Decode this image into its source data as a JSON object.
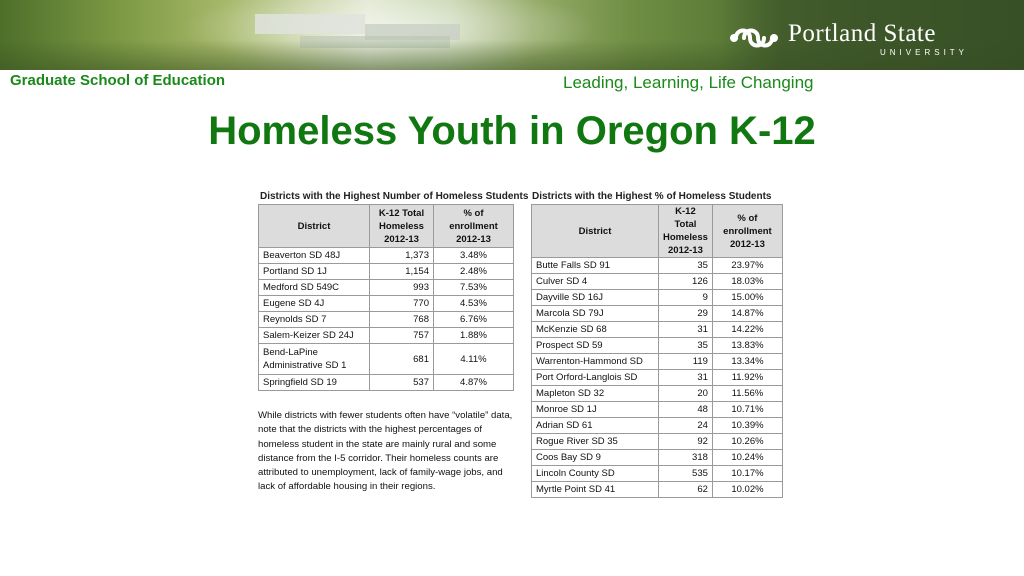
{
  "header": {
    "school": "Graduate School of Education",
    "tagline": "Leading, Learning, Life Changing",
    "logo_name": "Portland State",
    "logo_sub": "UNIVERSITY"
  },
  "slide": {
    "title": "Homeless Youth in Oregon K-12"
  },
  "left_table": {
    "caption": "Districts with the Highest Number of Homeless Students",
    "headers": [
      "District",
      "K-12 Total Homeless 2012-13",
      "% of enrollment 2012-13"
    ],
    "rows": [
      {
        "district": "Beaverton SD 48J",
        "total": "1,373",
        "pct": "3.48%"
      },
      {
        "district": "Portland SD 1J",
        "total": "1,154",
        "pct": "2.48%"
      },
      {
        "district": "Medford SD 549C",
        "total": "993",
        "pct": "7.53%"
      },
      {
        "district": "Eugene SD 4J",
        "total": "770",
        "pct": "4.53%"
      },
      {
        "district": "Reynolds SD 7",
        "total": "768",
        "pct": "6.76%"
      },
      {
        "district": "Salem-Keizer SD 24J",
        "total": "757",
        "pct": "1.88%"
      },
      {
        "district": "Bend-LaPine Administrative SD 1",
        "total": "681",
        "pct": "4.11%"
      },
      {
        "district": "Springfield SD 19",
        "total": "537",
        "pct": "4.87%"
      }
    ]
  },
  "right_table": {
    "caption": "Districts with the Highest % of Homeless Students",
    "headers": [
      "District",
      "K-12 Total Homeless 2012-13",
      "% of enrollment 2012-13"
    ],
    "rows": [
      {
        "district": "Butte Falls SD 91",
        "total": "35",
        "pct": "23.97%"
      },
      {
        "district": "Culver SD 4",
        "total": "126",
        "pct": "18.03%"
      },
      {
        "district": "Dayville SD 16J",
        "total": "9",
        "pct": "15.00%"
      },
      {
        "district": "Marcola SD 79J",
        "total": "29",
        "pct": "14.87%"
      },
      {
        "district": "McKenzie SD 68",
        "total": "31",
        "pct": "14.22%"
      },
      {
        "district": "Prospect SD 59",
        "total": "35",
        "pct": "13.83%"
      },
      {
        "district": "Warrenton-Hammond SD",
        "total": "119",
        "pct": "13.34%"
      },
      {
        "district": "Port Orford-Langlois SD",
        "total": "31",
        "pct": "11.92%"
      },
      {
        "district": "Mapleton SD 32",
        "total": "20",
        "pct": "11.56%"
      },
      {
        "district": "Monroe SD 1J",
        "total": "48",
        "pct": "10.71%"
      },
      {
        "district": "Adrian SD 61",
        "total": "24",
        "pct": "10.39%"
      },
      {
        "district": "Rogue River SD 35",
        "total": "92",
        "pct": "10.26%"
      },
      {
        "district": "Coos Bay SD 9",
        "total": "318",
        "pct": "10.24%"
      },
      {
        "district": "Lincoln County SD",
        "total": "535",
        "pct": "10.17%"
      },
      {
        "district": "Myrtle Point SD 41",
        "total": "62",
        "pct": "10.02%"
      }
    ]
  },
  "note": "While districts with fewer students often have “volatile” data, note that the districts with the highest percentages of homeless student in the state are mainly rural and some distance from the I-5 corridor. Their homeless counts are attributed to unemployment, lack of family-wage jobs, and lack of affordable housing in their regions.",
  "colors": {
    "title_green": "#117711",
    "header_green": "#1a8a1a",
    "table_header_bg": "#dcdcdc"
  }
}
